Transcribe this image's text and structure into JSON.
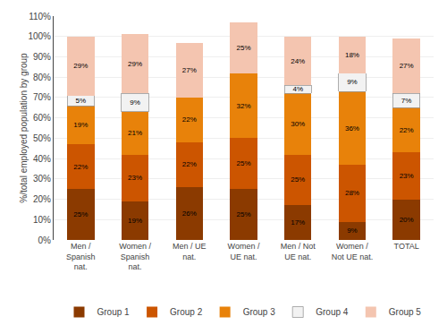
{
  "chart_data": {
    "type": "bar",
    "stacked": true,
    "data_labels": true,
    "ylabel": "%/total employed population by group",
    "categories": [
      "Men /\nSpanish\nnat.",
      "Women /\nSpanish\nnat.",
      "Men / UE\nnat.",
      "Women /\nUE nat.",
      "Men / Not\nUE nat.",
      "Women /\nNot UE nat.",
      "TOTAL"
    ],
    "series": [
      {
        "name": "Group 1",
        "color": "#8B3A00",
        "values": [
          25,
          19,
          26,
          25,
          17,
          9,
          20
        ],
        "value_labels": [
          "25%",
          "19%",
          "26%",
          "25%",
          "17%",
          "9%",
          "20%"
        ]
      },
      {
        "name": "Group 2",
        "color": "#CC5500",
        "values": [
          22,
          23,
          22,
          25,
          25,
          28,
          23
        ],
        "value_labels": [
          "22%",
          "23%",
          "22%",
          "25%",
          "25%",
          "28%",
          "23%"
        ]
      },
      {
        "name": "Group 3",
        "color": "#E8820A",
        "values": [
          19,
          21,
          22,
          32,
          30,
          36,
          22
        ],
        "value_labels": [
          "19%",
          "21%",
          "22%",
          "32%",
          "30%",
          "36%",
          "22%"
        ]
      },
      {
        "name": "Group 4",
        "color": "#F2F2F2",
        "values": [
          5,
          9,
          0,
          0,
          4,
          9,
          7
        ],
        "value_labels": [
          "5%",
          "9%",
          null,
          null,
          "4%",
          "9%",
          "7%"
        ]
      },
      {
        "name": "Group 5",
        "color": "#F4C5B0",
        "values": [
          29,
          29,
          27,
          25,
          24,
          18,
          27
        ],
        "value_labels": [
          "29%",
          "29%",
          "27%",
          "25%",
          "24%",
          "18%",
          "27%"
        ]
      }
    ],
    "ylim": [
      0,
      110
    ],
    "yticks": [
      {
        "value": 0,
        "label": "0%"
      },
      {
        "value": 10,
        "label": "10%"
      },
      {
        "value": 20,
        "label": "20%"
      },
      {
        "value": 30,
        "label": "30%"
      },
      {
        "value": 40,
        "label": "40%"
      },
      {
        "value": 50,
        "label": "50%"
      },
      {
        "value": 60,
        "label": "60%"
      },
      {
        "value": 70,
        "label": "70%"
      },
      {
        "value": 80,
        "label": "80%"
      },
      {
        "value": 90,
        "label": "90%"
      },
      {
        "value": 100,
        "label": "100%"
      },
      {
        "value": 110,
        "label": "110%"
      }
    ],
    "grid": true,
    "legend": "bottom"
  }
}
